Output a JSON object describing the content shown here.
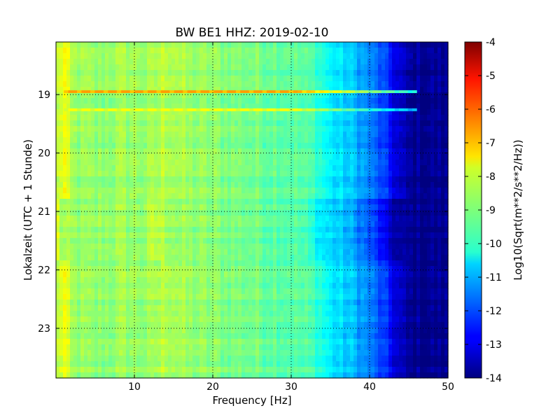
{
  "chart_data": {
    "type": "heatmap",
    "title": "BW BE1 HHZ: 2019-02-10",
    "xlabel": "Frequency [Hz]",
    "ylabel": "Lokalzeit (UTC + 1 Stunde)",
    "xlim": [
      0,
      50
    ],
    "ylim": [
      18.1,
      23.85
    ],
    "x_ticks": [
      10,
      20,
      30,
      40,
      50
    ],
    "y_ticks": [
      19,
      20,
      21,
      22,
      23
    ],
    "grid": true,
    "colorbar": {
      "label": "Log10(Sqrt(m**2/s**2/Hz))",
      "min": -14,
      "max": -4,
      "ticks": [
        -4,
        -5,
        -6,
        -7,
        -8,
        -9,
        -10,
        -11,
        -12,
        -13,
        -14
      ],
      "colormap": "jet"
    },
    "spectrum_profile": [
      {
        "freq": 0,
        "value": -8.6
      },
      {
        "freq": 1,
        "value": -7.8
      },
      {
        "freq": 2,
        "value": -8.7
      },
      {
        "freq": 5,
        "value": -8.9
      },
      {
        "freq": 9,
        "value": -8.7
      },
      {
        "freq": 12,
        "value": -8.8
      },
      {
        "freq": 14,
        "value": -8.4
      },
      {
        "freq": 17,
        "value": -8.8
      },
      {
        "freq": 20,
        "value": -8.9
      },
      {
        "freq": 25,
        "value": -9.1
      },
      {
        "freq": 30,
        "value": -9.3
      },
      {
        "freq": 33,
        "value": -9.6
      },
      {
        "freq": 35,
        "value": -10.4
      },
      {
        "freq": 38,
        "value": -10.9
      },
      {
        "freq": 40,
        "value": -11.5
      },
      {
        "freq": 42,
        "value": -12.3
      },
      {
        "freq": 43.5,
        "value": -13.2
      },
      {
        "freq": 45,
        "value": -13.8
      },
      {
        "freq": 50,
        "value": -13.9
      }
    ],
    "events": [
      {
        "time": 18.95,
        "peak_value": -6.8,
        "max_freq": 46
      },
      {
        "time": 19.26,
        "peak_value": -7.8,
        "max_freq": 46
      }
    ]
  }
}
